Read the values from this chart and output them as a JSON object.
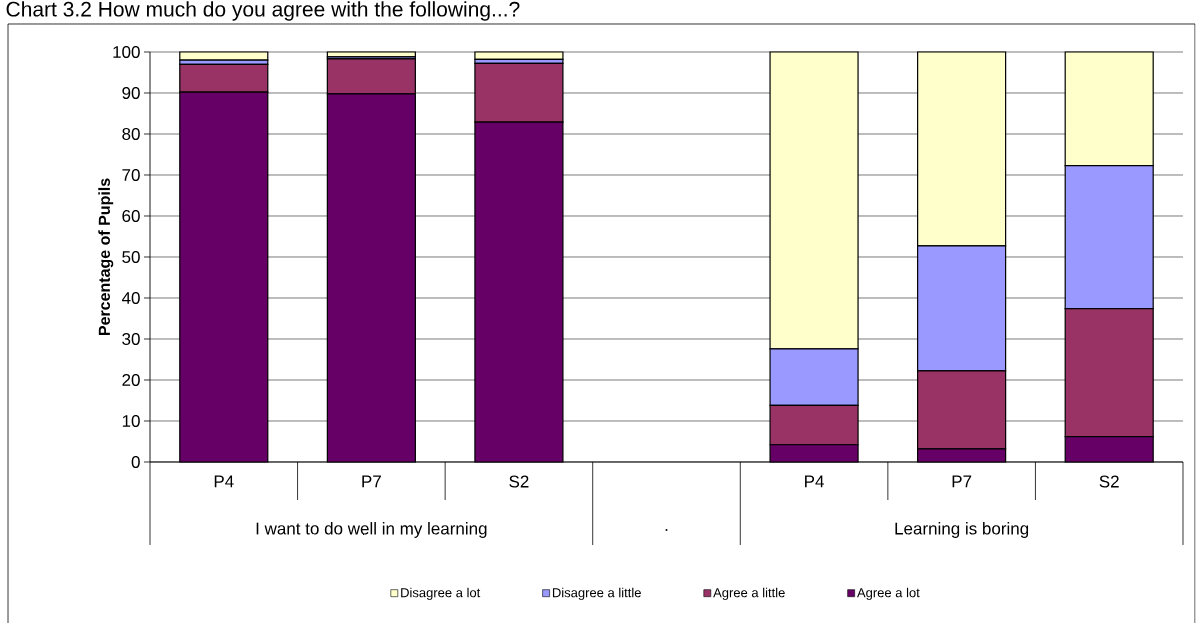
{
  "chart_data": {
    "type": "bar",
    "stacked": true,
    "title": "Chart 3.2 How much do you agree with the following...?",
    "ylabel": "Percentage of Pupils",
    "categories": [
      "P4",
      "P7",
      "S2",
      null,
      "P4",
      "P7",
      "S2"
    ],
    "annotations": [
      "I want to do well in my learning",
      ".",
      "Learning is boring"
    ],
    "series": [
      {
        "name": "Agree a lot",
        "color": "#660066",
        "values": [
          90.2,
          89.8,
          82.9,
          null,
          4.2,
          3.2,
          6.2
        ]
      },
      {
        "name": "Agree a little",
        "color": "#993366",
        "values": [
          6.8,
          8.5,
          14.3,
          null,
          9.6,
          19.0,
          31.2
        ]
      },
      {
        "name": "Disagree a little",
        "color": "#9999ff",
        "values": [
          1.0,
          0.5,
          1.0,
          null,
          13.8,
          30.5,
          34.9
        ]
      },
      {
        "name": "Disagree a lot",
        "color": "#ffffcc",
        "values": [
          2.0,
          1.2,
          1.8,
          null,
          72.4,
          47.3,
          27.7
        ]
      }
    ],
    "ylim": [
      0,
      100
    ],
    "yticks": [
      0,
      10,
      20,
      30,
      40,
      50,
      60,
      70,
      80,
      90,
      100
    ],
    "grid": "y",
    "legend": "bottom"
  }
}
